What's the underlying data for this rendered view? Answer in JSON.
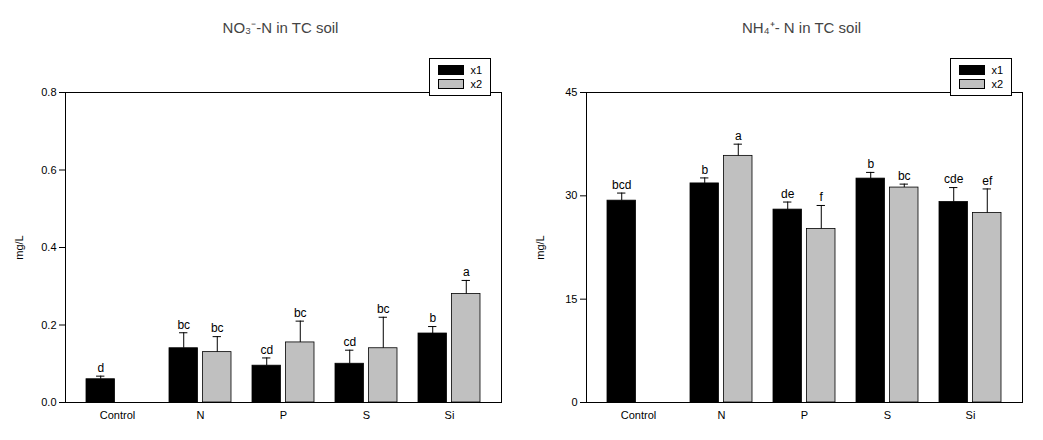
{
  "chart_data": [
    {
      "type": "bar",
      "title": "NO₃⁻-N in TC soil",
      "ylabel": "mg/L",
      "categories": [
        "Control",
        "N",
        "P",
        "S",
        "Si"
      ],
      "ylim": [
        0,
        0.8
      ],
      "yticks": [
        {
          "value": 0,
          "label": "0.0"
        },
        {
          "value": 0.2,
          "label": "0.2"
        },
        {
          "value": 0.4,
          "label": "0.4"
        },
        {
          "value": 0.6,
          "label": "0.6"
        },
        {
          "value": 0.8,
          "label": "0.8"
        }
      ],
      "legend": "upper right",
      "series": [
        {
          "name": "x1",
          "color": "#000000",
          "values": [
            0.06,
            0.14,
            0.095,
            0.1,
            0.178
          ],
          "errors": [
            0.008,
            0.04,
            0.02,
            0.035,
            0.018
          ],
          "annotations": [
            "d",
            "bc",
            "cd",
            "cd",
            "b"
          ]
        },
        {
          "name": "x2",
          "color": "#c0c0c0",
          "values": [
            null,
            0.13,
            0.155,
            0.14,
            0.28
          ],
          "errors": [
            null,
            0.04,
            0.055,
            0.08,
            0.035
          ],
          "annotations": [
            null,
            "bc",
            "bc",
            "bc",
            "a"
          ]
        }
      ]
    },
    {
      "type": "bar",
      "title": "NH₄⁺- N in TC soil",
      "ylabel": "mg/L",
      "categories": [
        "Control",
        "N",
        "P",
        "S",
        "Si"
      ],
      "ylim": [
        0,
        45
      ],
      "yticks": [
        0,
        15,
        30,
        45
      ],
      "legend": "upper right",
      "series": [
        {
          "name": "x1",
          "color": "#000000",
          "values": [
            29.3,
            31.8,
            28.0,
            32.5,
            29.1
          ],
          "errors": [
            1.1,
            0.8,
            1.1,
            0.9,
            2.1
          ],
          "annotations": [
            "bcd",
            "b",
            "de",
            "b",
            "cde"
          ]
        },
        {
          "name": "x2",
          "color": "#c0c0c0",
          "values": [
            null,
            35.8,
            25.2,
            31.2,
            27.5
          ],
          "errors": [
            null,
            1.7,
            3.4,
            0.5,
            3.5
          ],
          "annotations": [
            null,
            "a",
            "f",
            "bc",
            "ef"
          ]
        }
      ]
    }
  ]
}
